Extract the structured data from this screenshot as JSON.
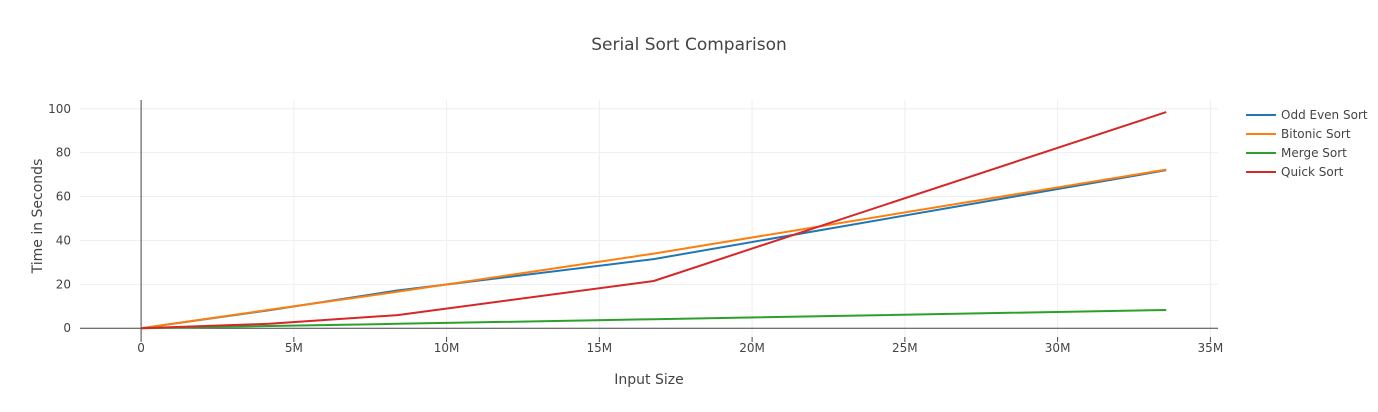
{
  "chart_data": {
    "type": "line",
    "title": "Serial Sort Comparison",
    "xlabel": "Input Size",
    "ylabel": "Time in Seconds",
    "xlim": [
      -2000000,
      35250000
    ],
    "ylim": [
      -4,
      104
    ],
    "x_ticks": [
      0,
      5000000,
      10000000,
      15000000,
      20000000,
      25000000,
      30000000,
      35000000
    ],
    "x_tick_labels": [
      "0",
      "5M",
      "10M",
      "15M",
      "20M",
      "25M",
      "30M",
      "35M"
    ],
    "y_ticks": [
      0,
      20,
      40,
      60,
      80,
      100
    ],
    "y_tick_labels": [
      "0",
      "20",
      "40",
      "60",
      "80",
      "100"
    ],
    "grid": true,
    "legend_position": "top-right",
    "x": [
      0,
      4194304,
      8388608,
      16777216,
      33554432
    ],
    "series": [
      {
        "name": "Odd Even Sort",
        "color": "#1f77b4",
        "values": [
          0,
          8.2,
          17.2,
          31.5,
          72.0
        ]
      },
      {
        "name": "Bitonic Sort",
        "color": "#ff7f0e",
        "values": [
          0,
          8.4,
          16.6,
          34.0,
          72.3
        ]
      },
      {
        "name": "Merge Sort",
        "color": "#2ca02c",
        "values": [
          0,
          1.0,
          2.0,
          4.1,
          8.3
        ]
      },
      {
        "name": "Quick Sort",
        "color": "#d62728",
        "values": [
          0,
          2.0,
          6.0,
          21.5,
          98.5
        ]
      }
    ]
  }
}
